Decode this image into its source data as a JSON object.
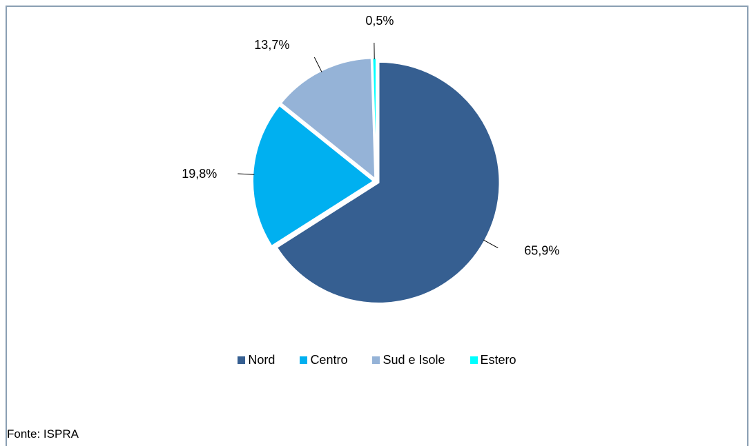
{
  "chart_data": {
    "type": "pie",
    "categories": [
      "Nord",
      "Centro",
      "Sud e Isole",
      "Estero"
    ],
    "values": [
      65.9,
      19.8,
      13.7,
      0.5
    ],
    "value_labels": [
      "65,9%",
      "19,8%",
      "13,7%",
      "0,5%"
    ],
    "colors": [
      "#365f91",
      "#00b0f0",
      "#95b3d7",
      "#00ffff"
    ],
    "legend_position": "bottom"
  },
  "legend": {
    "items": [
      {
        "label": "Nord",
        "color": "#365f91"
      },
      {
        "label": "Centro",
        "color": "#00b0f0"
      },
      {
        "label": "Sud e Isole",
        "color": "#95b3d7"
      },
      {
        "label": "Estero",
        "color": "#00ffff"
      }
    ]
  },
  "source": "Fonte: ISPRA"
}
